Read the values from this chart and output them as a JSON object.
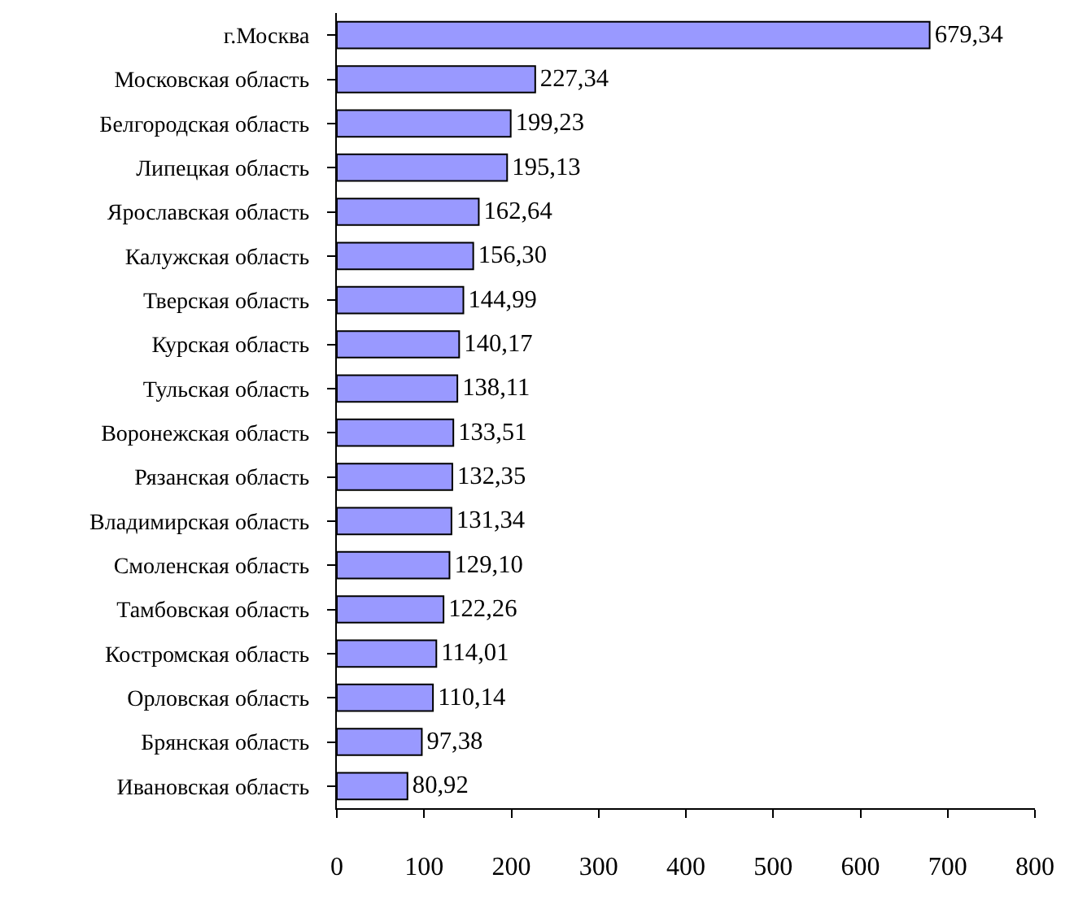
{
  "chart_data": {
    "type": "bar",
    "orientation": "horizontal",
    "categories": [
      "г.Москва",
      "Московская область",
      "Белгородская область",
      "Липецкая область",
      "Ярославская область",
      "Калужская область",
      "Тверская область",
      "Курская область",
      "Тульская область",
      "Воронежская область",
      "Рязанская область",
      "Владимирская область",
      "Смоленская область",
      "Тамбовская область",
      "Костромская область",
      "Орловская область",
      "Брянская область",
      "Ивановская область"
    ],
    "values": [
      679.34,
      227.34,
      199.23,
      195.13,
      162.64,
      156.3,
      144.99,
      140.17,
      138.11,
      133.51,
      132.35,
      131.34,
      129.1,
      122.26,
      114.01,
      110.14,
      97.38,
      80.92
    ],
    "value_labels": [
      "679,34",
      "227,34",
      "199,23",
      "195,13",
      "162,64",
      "156,30",
      "144,99",
      "140,17",
      "138,11",
      "133,51",
      "132,35",
      "131,34",
      "129,10",
      "122,26",
      "114,01",
      "110,14",
      "97,38",
      "80,92"
    ],
    "color": "#9999ff",
    "xlim": [
      0,
      800
    ],
    "xticks": [
      0,
      100,
      200,
      300,
      400,
      500,
      600,
      700,
      800
    ],
    "grid": false,
    "legend": false
  }
}
